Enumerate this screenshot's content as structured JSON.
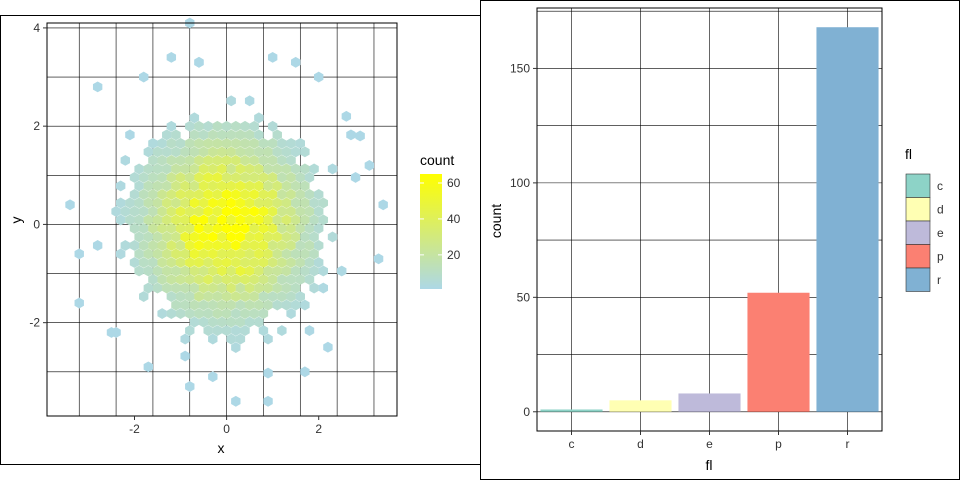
{
  "chart_data": [
    {
      "type": "hexbin",
      "xlabel": "x",
      "ylabel": "y",
      "xlim": [
        -3.9,
        3.7
      ],
      "ylim": [
        -3.9,
        4.1
      ],
      "x_ticks": [
        -2,
        0,
        2
      ],
      "x_tick_labels": [
        "-2",
        "0",
        "2"
      ],
      "y_ticks": [
        -2,
        0,
        2,
        4
      ],
      "y_tick_labels": [
        "-2",
        "0",
        "2",
        "4"
      ],
      "grid": true,
      "legend": {
        "title": "count",
        "position": "right",
        "ticks": [
          20,
          40,
          60
        ],
        "tick_labels": [
          "20",
          "40",
          "60"
        ],
        "range": [
          1,
          65
        ],
        "low_color": "#ADD8E6",
        "high_color": "#FFFF00"
      },
      "distribution": {
        "kind": "bivariate normal",
        "mean": [
          0,
          0
        ],
        "sd": [
          1,
          1
        ],
        "peak_count": 65
      },
      "outlier_points": [
        [
          -0.8,
          4.1
        ],
        [
          -1.2,
          3.4
        ],
        [
          -0.6,
          3.3
        ],
        [
          -0.6,
          3.3
        ],
        [
          1,
          3.4
        ],
        [
          1.5,
          3.3
        ],
        [
          -1.8,
          3
        ],
        [
          -2.8,
          2.8
        ],
        [
          2,
          3
        ],
        [
          -3.2,
          -0.6
        ],
        [
          3.3,
          -0.7
        ],
        [
          -3.4,
          0.4
        ],
        [
          -3.2,
          -1.6
        ],
        [
          -2.5,
          -2.2
        ],
        [
          -2.4,
          -2.2
        ],
        [
          -1.7,
          -2.9
        ],
        [
          -0.8,
          -3.3
        ],
        [
          -0.3,
          -3.1
        ],
        [
          0.2,
          -3.6
        ],
        [
          0.9,
          -3.6
        ],
        [
          1.7,
          -3.0
        ],
        [
          2.2,
          -2.5
        ],
        [
          3.4,
          0.4
        ],
        [
          3.1,
          1.2
        ],
        [
          2.9,
          1.8
        ],
        [
          2.6,
          2.2
        ]
      ]
    },
    {
      "type": "bar",
      "xlabel": "fl",
      "ylabel": "count",
      "categories": [
        "c",
        "d",
        "e",
        "p",
        "r"
      ],
      "values": [
        1,
        5,
        8,
        52,
        168
      ],
      "colors": [
        "#8DD3C7",
        "#FFFFB3",
        "#BEBADA",
        "#FB8072",
        "#80B1D3"
      ],
      "ylim": [
        -8.4,
        176.4
      ],
      "y_ticks": [
        0,
        50,
        100,
        150
      ],
      "y_tick_labels": [
        "0",
        "50",
        "100",
        "150"
      ],
      "grid": true,
      "legend": {
        "title": "fl",
        "position": "right",
        "labels": [
          "c",
          "d",
          "e",
          "p",
          "r"
        ]
      }
    }
  ]
}
